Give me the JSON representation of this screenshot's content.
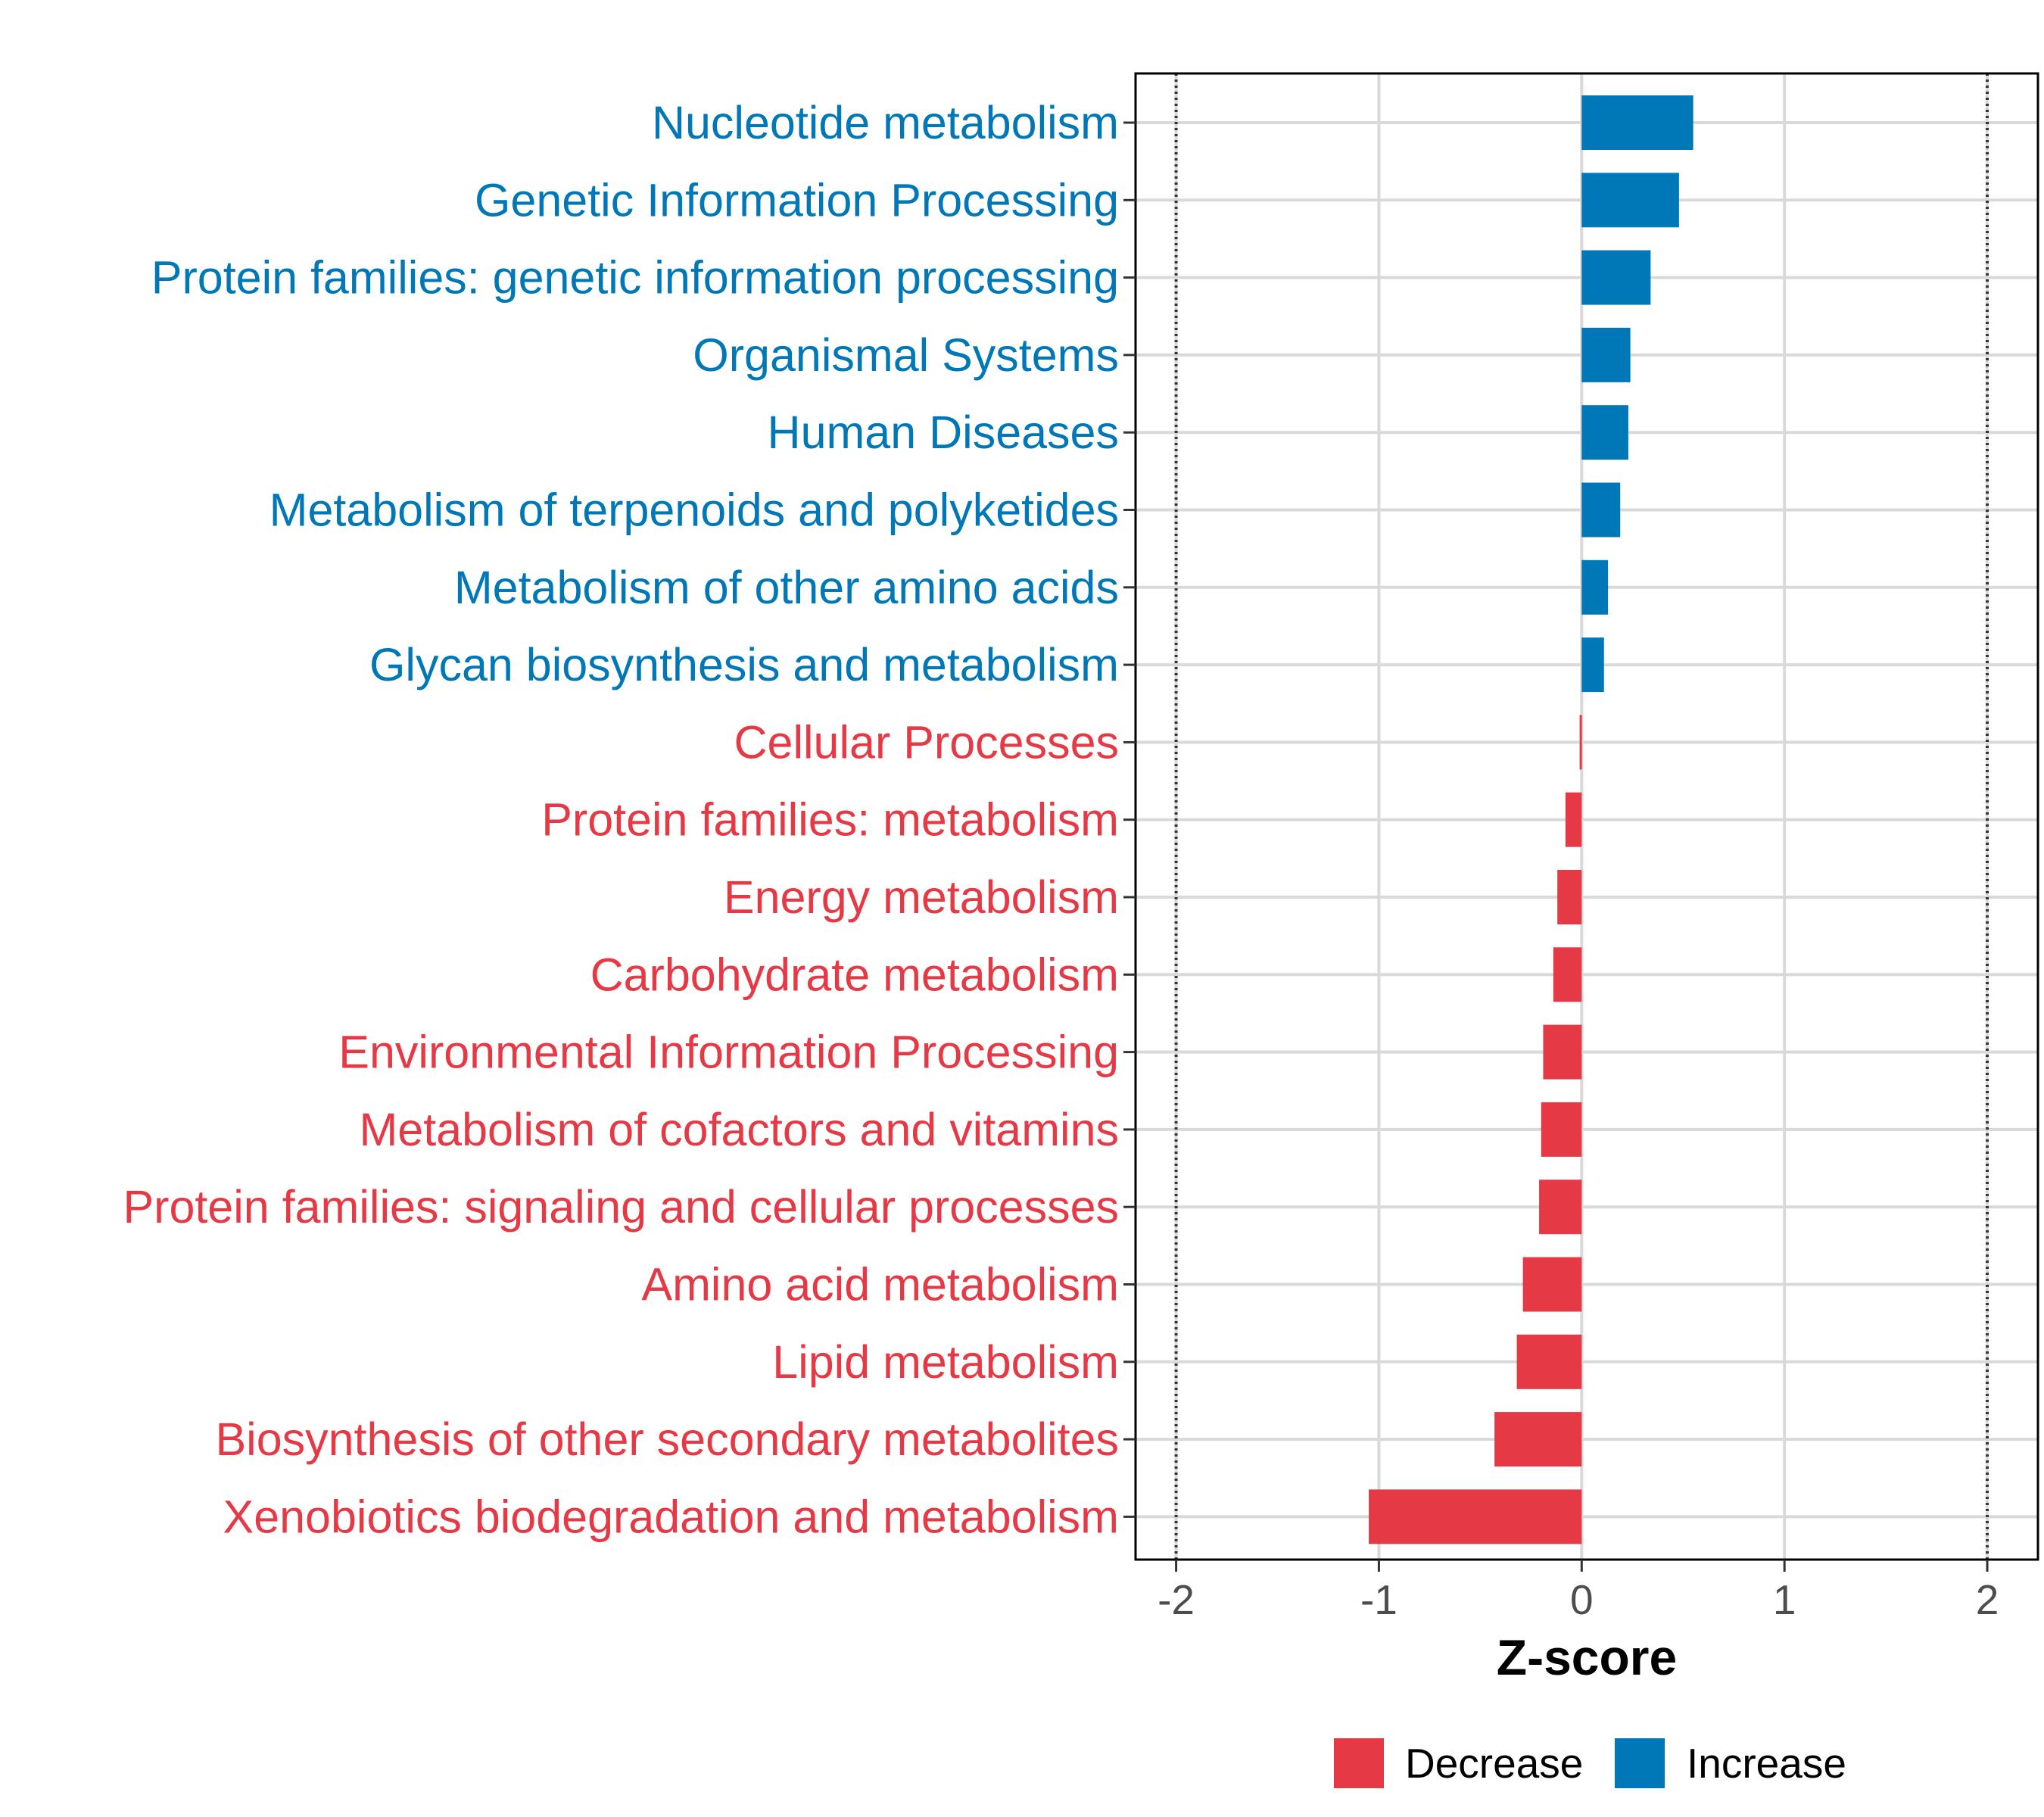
{
  "chart_data": {
    "type": "bar",
    "orientation": "horizontal",
    "xlabel": "Z-score",
    "xlim": [
      -2.2,
      2.25
    ],
    "xticks": [
      -2,
      -1,
      0,
      1,
      2
    ],
    "xtick_labels": [
      "-2",
      "-1",
      "0",
      "1",
      "2"
    ],
    "reference_lines": [
      -2,
      2
    ],
    "grid": true,
    "legend_position": "bottom",
    "colors": {
      "Decrease": "#e63946",
      "Increase": "#0077b6"
    },
    "legend": [
      {
        "name": "Decrease",
        "color": "#e63946"
      },
      {
        "name": "Increase",
        "color": "#0077b6"
      }
    ],
    "categories": [
      "Nucleotide metabolism",
      "Genetic Information Processing",
      "Protein families: genetic information processing",
      "Organismal Systems",
      "Human Diseases",
      "Metabolism of terpenoids and polyketides",
      "Metabolism of other amino acids",
      "Glycan biosynthesis and metabolism",
      "Cellular Processes",
      "Protein families: metabolism",
      "Energy metabolism",
      "Carbohydrate metabolism",
      "Environmental Information Processing",
      "Metabolism of cofactors and vitamins",
      "Protein families: signaling and cellular processes",
      "Amino acid metabolism",
      "Lipid metabolism",
      "Biosynthesis of other secondary metabolites",
      "Xenobiotics biodegradation and metabolism"
    ],
    "values": [
      0.55,
      0.48,
      0.34,
      0.24,
      0.23,
      0.19,
      0.13,
      0.11,
      -0.01,
      -0.08,
      -0.12,
      -0.14,
      -0.19,
      -0.2,
      -0.21,
      -0.29,
      -0.32,
      -0.43,
      -1.05
    ],
    "groups": [
      "Increase",
      "Increase",
      "Increase",
      "Increase",
      "Increase",
      "Increase",
      "Increase",
      "Increase",
      "Decrease",
      "Decrease",
      "Decrease",
      "Decrease",
      "Decrease",
      "Decrease",
      "Decrease",
      "Decrease",
      "Decrease",
      "Decrease",
      "Decrease"
    ]
  }
}
